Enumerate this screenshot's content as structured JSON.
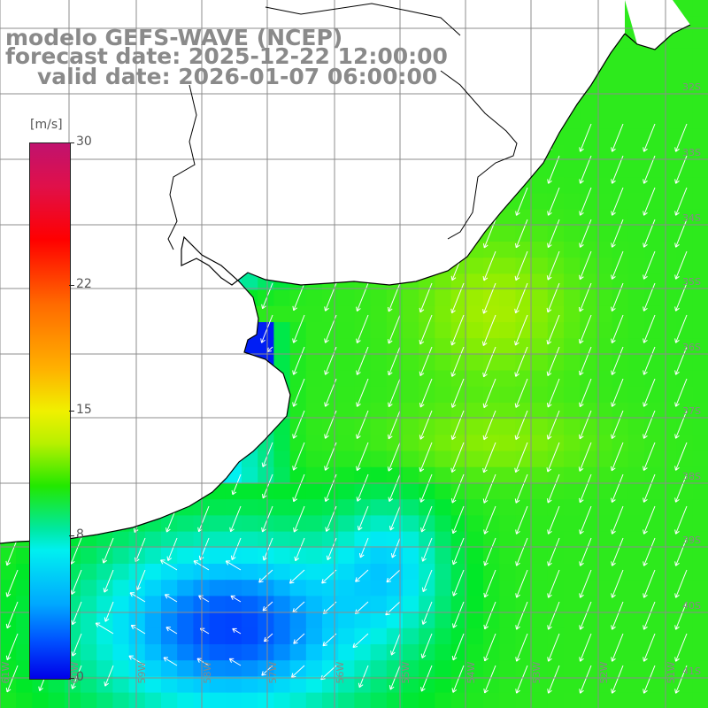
{
  "title": {
    "line1": "modelo GEFS-WAVE (NCEP)",
    "line2": "forecast date: 2025-12-22 12:00:00",
    "line3": "valid date: 2026-01-07 06:00:00"
  },
  "colorbar": {
    "units": "[m/s]",
    "ticks": [
      {
        "label": "30",
        "value": 30
      },
      {
        "label": "22",
        "value": 22
      },
      {
        "label": "15",
        "value": 15
      },
      {
        "label": "8",
        "value": 8
      },
      {
        "label": "0",
        "value": 0
      }
    ],
    "max": 30,
    "min": 0
  },
  "map": {
    "lat_labels": [
      "32S",
      "33S",
      "34S",
      "35S",
      "36S",
      "37S",
      "38S",
      "39S",
      "40S",
      "41S"
    ],
    "lon_labels": [
      "61W",
      "60W",
      "59W",
      "58W",
      "57W",
      "56W",
      "55W",
      "54W",
      "53W",
      "52W",
      "51W"
    ],
    "colors": {
      "land": "#ffffff",
      "grid": "#8c8c8c",
      "coast": "#000000",
      "arrow": "#ffffff"
    }
  }
}
